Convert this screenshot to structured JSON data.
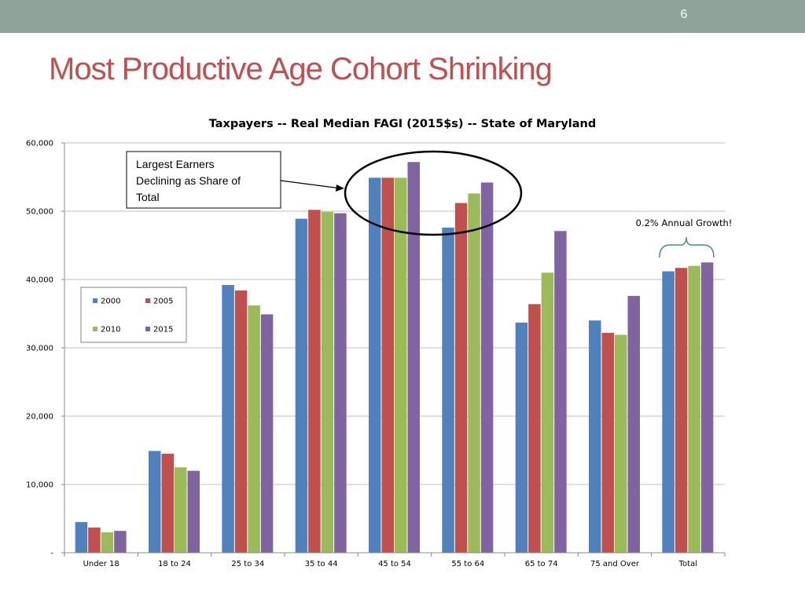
{
  "slide": {
    "number": "6",
    "title": "Most Productive Age Cohort Shrinking"
  },
  "callout": {
    "lines": [
      "Largest Earners",
      "Declining as Share of",
      "Total"
    ]
  },
  "colors": {
    "topbar": "#8fa39a",
    "title": "#c0504d",
    "series": [
      "#4f81bd",
      "#c0504d",
      "#9bbb59",
      "#8064a2"
    ]
  },
  "chart_data": {
    "type": "bar",
    "title": "Taxpayers -- Real Median FAGI (2015$s) -- State of Maryland",
    "xlabel": "",
    "ylabel": "",
    "ylim": [
      0,
      60000
    ],
    "yticks": [
      "-",
      "10,000",
      "20,000",
      "30,000",
      "40,000",
      "50,000",
      "60,000"
    ],
    "grid": true,
    "legend_position": "left",
    "categories": [
      "Under 18",
      "18 to 24",
      "25 to 34",
      "35 to 44",
      "45 to 54",
      "55 to 64",
      "65 to 74",
      "75 and Over",
      "Total"
    ],
    "series": [
      {
        "name": "2000",
        "values": [
          4500,
          14900,
          39200,
          48900,
          54900,
          47600,
          33700,
          34000,
          41200
        ]
      },
      {
        "name": "2005",
        "values": [
          3700,
          14500,
          38400,
          50200,
          54900,
          51200,
          36400,
          32200,
          41700
        ]
      },
      {
        "name": "2010",
        "values": [
          3000,
          12500,
          36200,
          49900,
          54900,
          52600,
          41000,
          31900,
          42000
        ]
      },
      {
        "name": "2015",
        "values": [
          3200,
          12000,
          34900,
          49700,
          57200,
          54200,
          47100,
          37600,
          42500
        ]
      }
    ],
    "annotations": [
      "0.2% Annual Growth!"
    ]
  }
}
